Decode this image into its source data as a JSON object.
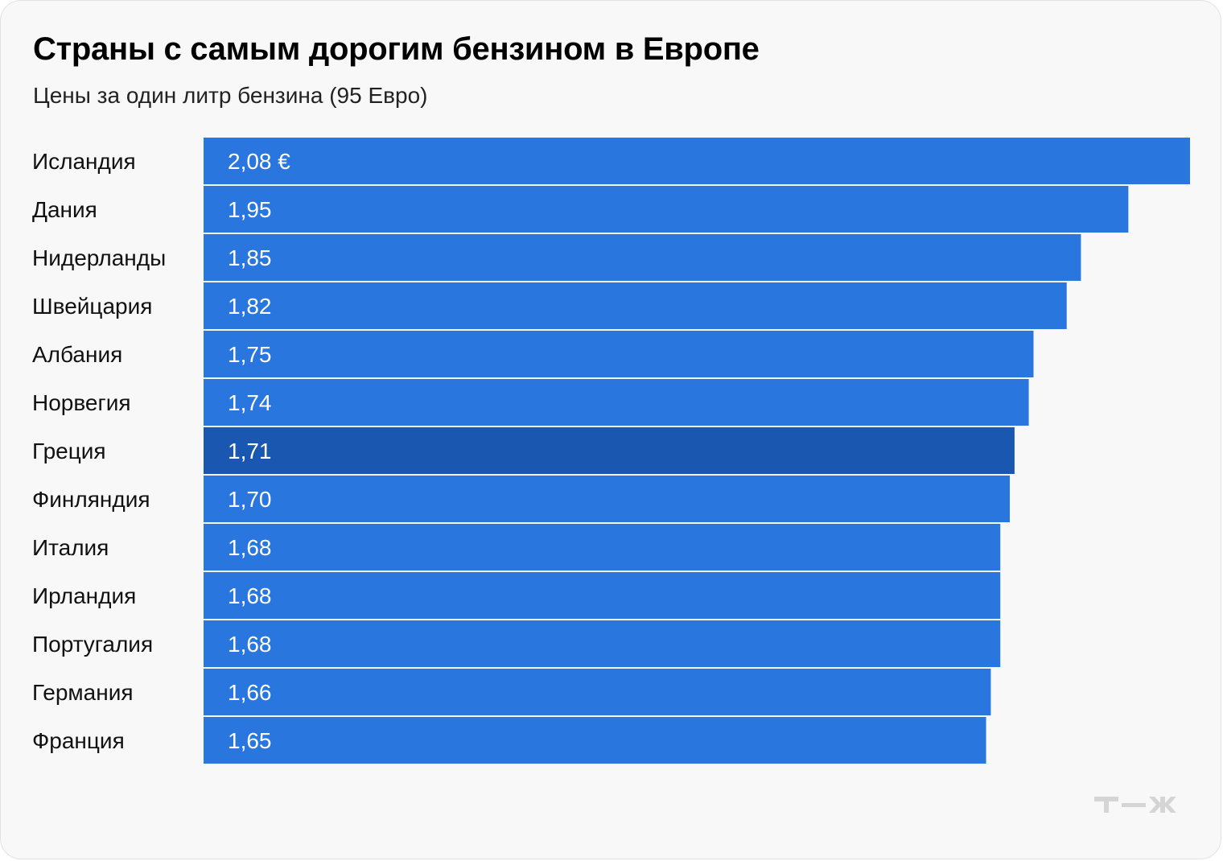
{
  "title": "Страны с самым дорогим бензином в Европе",
  "subtitle": "Цены за один литр бензина (95 Евро)",
  "colors": {
    "bar": "#2876de",
    "highlight": "#1957b1",
    "background": "#f8f8f8",
    "label_text": "#ffffff",
    "logo": "#d5d5d5"
  },
  "logo_icon": "tzh-logo",
  "chart_data": {
    "type": "bar",
    "orientation": "horizontal",
    "title": "Страны с самым дорогим бензином в Европе",
    "subtitle": "Цены за один литр бензина (95 Евро)",
    "categories": [
      "Исландия",
      "Дания",
      "Нидерланды",
      "Швейцария",
      "Албания",
      "Норвегия",
      "Греция",
      "Финляндия",
      "Италия",
      "Ирландия",
      "Португалия",
      "Германия",
      "Франция"
    ],
    "values": [
      2.08,
      1.95,
      1.85,
      1.82,
      1.75,
      1.74,
      1.71,
      1.7,
      1.68,
      1.68,
      1.68,
      1.66,
      1.65
    ],
    "value_labels": [
      "2,08 €",
      "1,95",
      "1,85",
      "1,82",
      "1,75",
      "1,74",
      "1,71",
      "1,70",
      "1,68",
      "1,68",
      "1,68",
      "1,66",
      "1,65"
    ],
    "highlighted": [
      "Греция"
    ],
    "xlim": [
      0,
      2.08
    ],
    "grid": false,
    "legend": "none"
  }
}
